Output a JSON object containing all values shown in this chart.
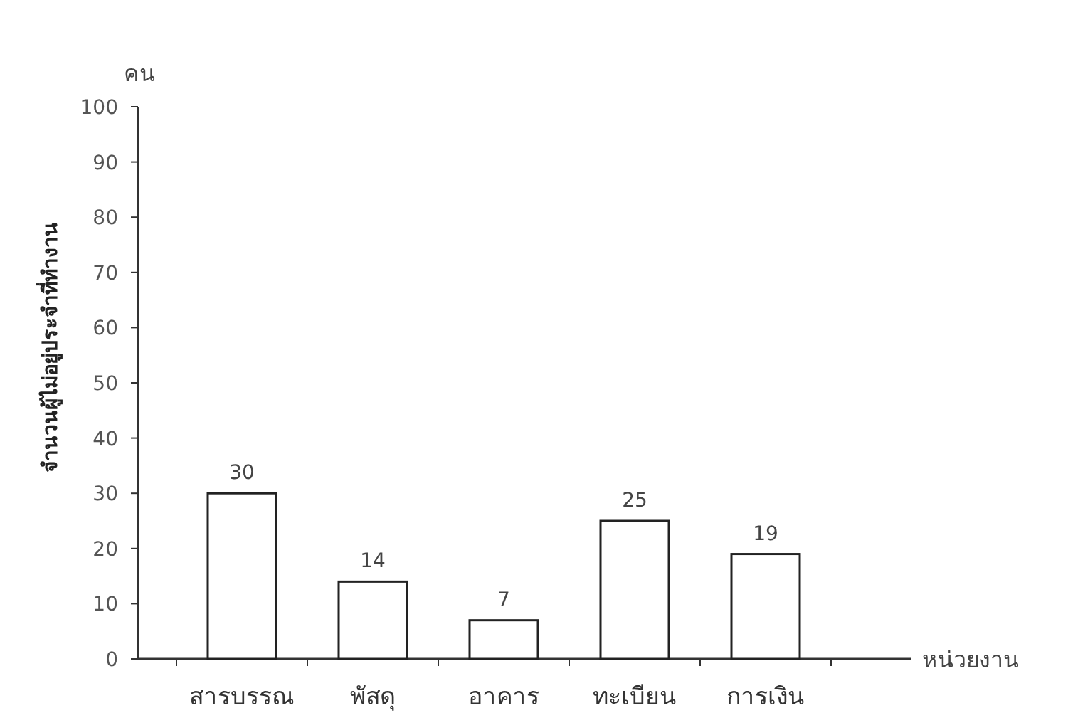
{
  "chart_data": {
    "type": "bar",
    "categories": [
      "สารบรรณ",
      "พัสดุ",
      "อาคาร",
      "ทะเบียน",
      "การเงิน"
    ],
    "values": [
      30,
      14,
      7,
      25,
      19
    ],
    "color": "#ffffff",
    "ylim": [
      0,
      100
    ],
    "yticks": [
      0,
      10,
      20,
      30,
      40,
      50,
      60,
      70,
      80,
      90,
      100
    ],
    "ylabel": "จำนวนผู้ไม่อยู่ประจำที่ทำงาน",
    "xlabel": "หน่วยงาน",
    "annotations": [
      "คน"
    ],
    "data_labels": true
  }
}
